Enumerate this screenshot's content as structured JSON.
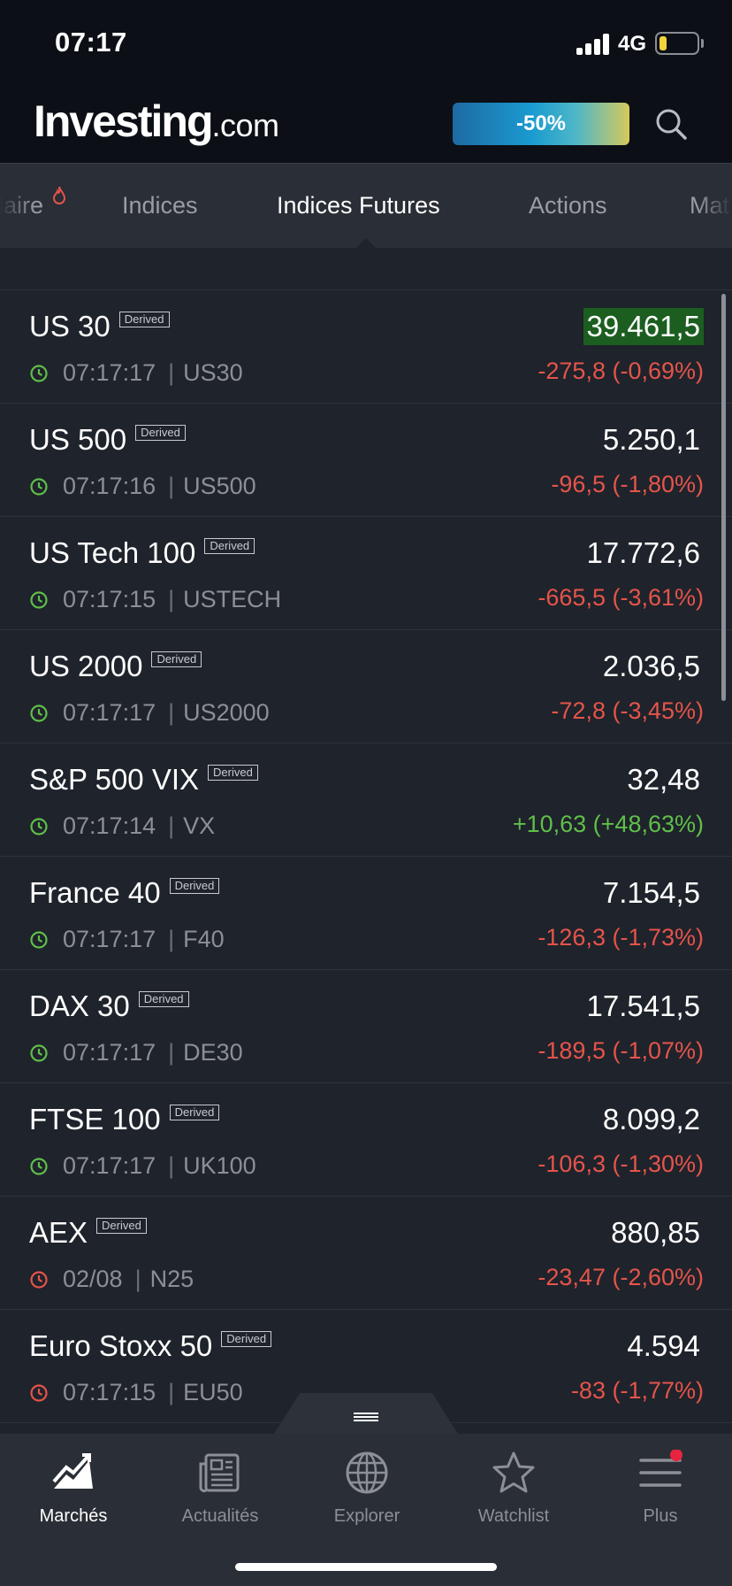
{
  "status_bar": {
    "time": "07:17",
    "network": "4G",
    "battery_level": 0.2
  },
  "header": {
    "logo_main": "Investing",
    "logo_suffix": ".com",
    "promo_label": "-50%"
  },
  "tabs": [
    {
      "label": "laire",
      "active": false
    },
    {
      "label": "Indices",
      "active": false
    },
    {
      "label": "Indices Futures",
      "active": true
    },
    {
      "label": "Actions",
      "active": false
    },
    {
      "label": "Mat",
      "active": false
    }
  ],
  "derived_badge": "Derived",
  "rows": [
    {
      "name": "US 30",
      "price": "39.461,5",
      "time": "07:17:17",
      "symbol": "US30",
      "change": "-275,8 (-0,69%)",
      "direction": "neg",
      "clock": "green",
      "highlight": true
    },
    {
      "name": "US 500",
      "price": "5.250,1",
      "time": "07:17:16",
      "symbol": "US500",
      "change": "-96,5 (-1,80%)",
      "direction": "neg",
      "clock": "green",
      "highlight": false
    },
    {
      "name": "US Tech 100",
      "price": "17.772,6",
      "time": "07:17:15",
      "symbol": "USTECH",
      "change": "-665,5 (-3,61%)",
      "direction": "neg",
      "clock": "green",
      "highlight": false
    },
    {
      "name": "US 2000",
      "price": "2.036,5",
      "time": "07:17:17",
      "symbol": "US2000",
      "change": "-72,8 (-3,45%)",
      "direction": "neg",
      "clock": "green",
      "highlight": false
    },
    {
      "name": "S&P 500 VIX",
      "price": "32,48",
      "time": "07:17:14",
      "symbol": "VX",
      "change": "+10,63 (+48,63%)",
      "direction": "pos",
      "clock": "green",
      "highlight": false
    },
    {
      "name": "France 40",
      "price": "7.154,5",
      "time": "07:17:17",
      "symbol": "F40",
      "change": "-126,3 (-1,73%)",
      "direction": "neg",
      "clock": "green",
      "highlight": false
    },
    {
      "name": "DAX 30",
      "price": "17.541,5",
      "time": "07:17:17",
      "symbol": "DE30",
      "change": "-189,5 (-1,07%)",
      "direction": "neg",
      "clock": "green",
      "highlight": false
    },
    {
      "name": "FTSE 100",
      "price": "8.099,2",
      "time": "07:17:17",
      "symbol": "UK100",
      "change": "-106,3 (-1,30%)",
      "direction": "neg",
      "clock": "green",
      "highlight": false
    },
    {
      "name": "AEX",
      "price": "880,85",
      "time": "02/08",
      "symbol": "N25",
      "change": "-23,47 (-2,60%)",
      "direction": "neg",
      "clock": "red",
      "highlight": false
    },
    {
      "name": "Euro Stoxx 50",
      "price": "4.594",
      "time": "07:17:15",
      "symbol": "EU50",
      "change": "-83 (-1,77%)",
      "direction": "neg",
      "clock": "red",
      "highlight": false
    }
  ],
  "bottom_nav": [
    {
      "label": "Marchés",
      "icon": "chart-trend-icon",
      "active": true
    },
    {
      "label": "Actualités",
      "icon": "newspaper-icon",
      "active": false
    },
    {
      "label": "Explorer",
      "icon": "globe-icon",
      "active": false
    },
    {
      "label": "Watchlist",
      "icon": "star-icon",
      "active": false
    },
    {
      "label": "Plus",
      "icon": "menu-icon",
      "active": false,
      "badge": true
    }
  ],
  "colors": {
    "negative": "#e5544b",
    "positive": "#5fbf4a",
    "highlight": "#1b5e20",
    "background": "#1f232b"
  }
}
